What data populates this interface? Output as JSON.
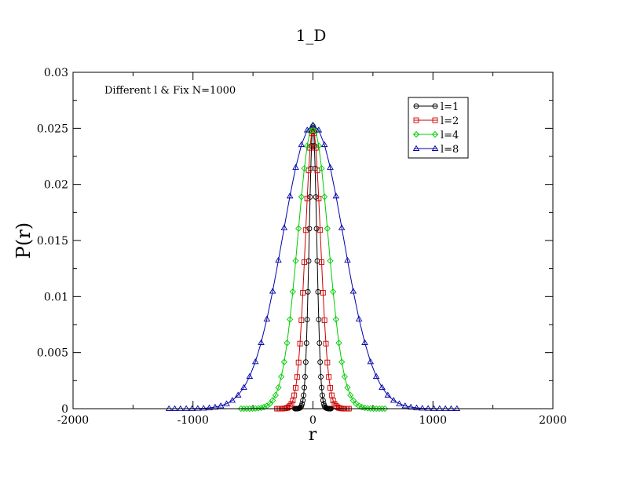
{
  "chart_data": {
    "type": "line",
    "title": "1_D",
    "xlabel": "r",
    "ylabel": "P(r)",
    "annotation": "Different l & Fix N=1000",
    "xlim": [
      -2000,
      2000
    ],
    "ylim": [
      0,
      0.03
    ],
    "xticks": [
      -2000,
      -1000,
      0,
      1000,
      2000
    ],
    "yticks": [
      0,
      0.005,
      0.01,
      0.015,
      0.02,
      0.025,
      0.03
    ],
    "xtick_labels": [
      "-2000",
      "-1000",
      "0",
      "1000",
      "2000"
    ],
    "ytick_labels": [
      "0",
      "0.005",
      "0.01",
      "0.015",
      "0.02",
      "0.025",
      "0.03"
    ],
    "grid": false,
    "legend_position": "top-right",
    "series": [
      {
        "name": "l=1",
        "color": "#000000",
        "marker": "circle",
        "sigma": 31.6,
        "peak": 0.0252,
        "xmin": -150,
        "xmax": 150,
        "step": 6
      },
      {
        "name": "l=2",
        "color": "#cc0000",
        "marker": "square",
        "sigma": 63.2,
        "peak": 0.025,
        "xmin": -300,
        "xmax": 300,
        "step": 12
      },
      {
        "name": "l=4",
        "color": "#00cc00",
        "marker": "diamond",
        "sigma": 126.5,
        "peak": 0.0252,
        "xmin": -600,
        "xmax": 600,
        "step": 24
      },
      {
        "name": "l=8",
        "color": "#0000aa",
        "marker": "triangle",
        "sigma": 253,
        "peak": 0.0253,
        "xmin": -1200,
        "xmax": 1200,
        "step": 48
      }
    ]
  }
}
